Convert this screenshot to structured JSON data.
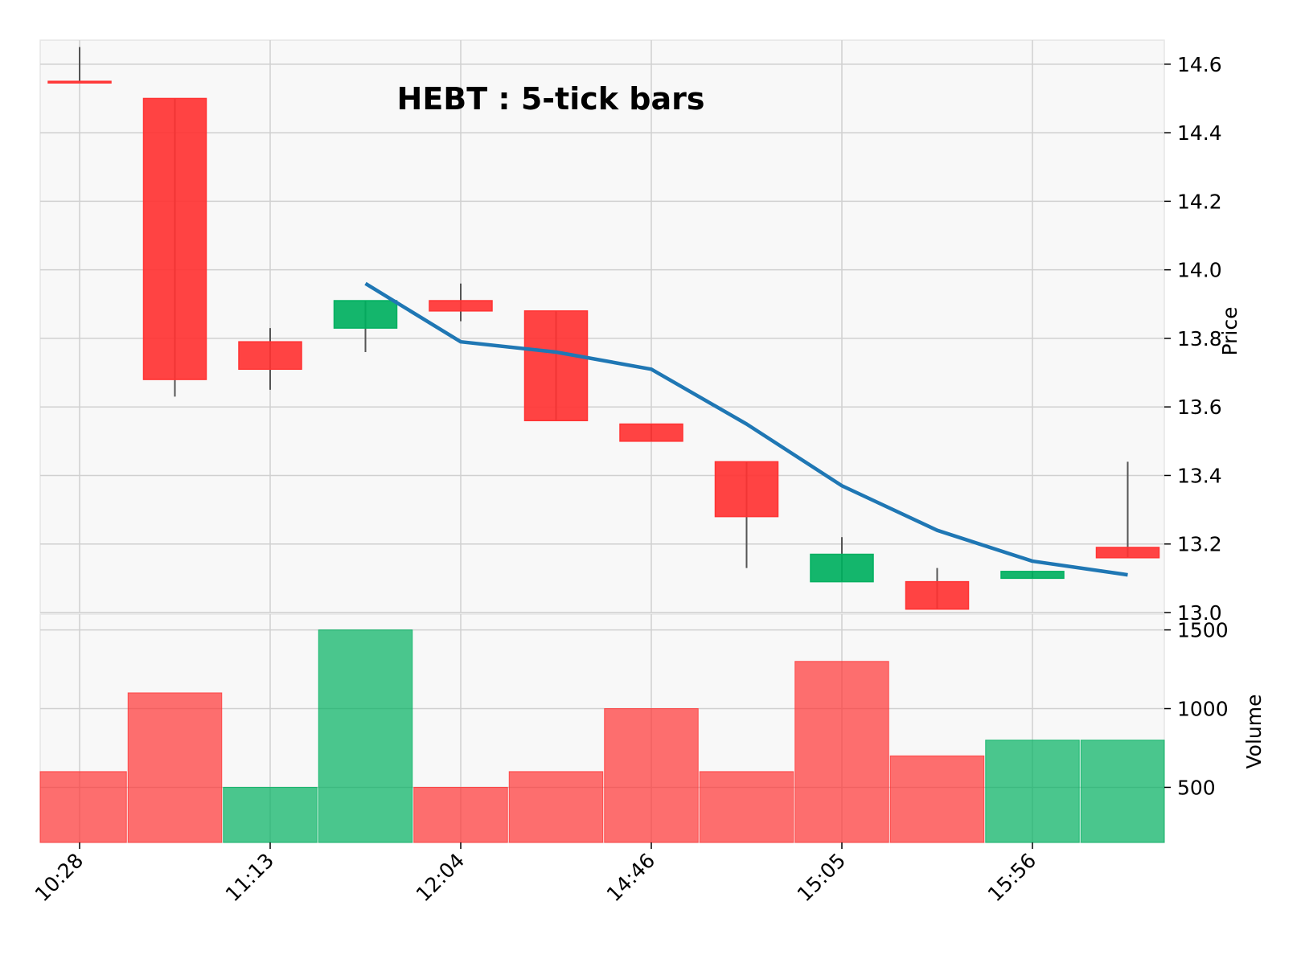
{
  "colors": {
    "up": "#00b060",
    "down": "#ff3333",
    "ma": "#1f77b4",
    "wick": "#555555",
    "grid": "#d0d0d0",
    "panel_bg": "#f8f8f8",
    "spine": "#e6e6e6"
  },
  "chart_data": [
    {
      "type": "candlestick",
      "title": "HEBT : 5-tick bars",
      "ylabel": "Price",
      "ylim": [
        13.0,
        14.67
      ],
      "y_ticks": [
        "13.0",
        "13.2",
        "13.4",
        "13.6",
        "13.8",
        "14.0",
        "14.2",
        "14.4",
        "14.6"
      ],
      "x_tick_labels": [
        {
          "index": 0,
          "label": "10:28"
        },
        {
          "index": 2,
          "label": "11:13"
        },
        {
          "index": 4,
          "label": "12:04"
        },
        {
          "index": 6,
          "label": "14:46"
        },
        {
          "index": 8,
          "label": "15:05"
        },
        {
          "index": 10,
          "label": "15:56"
        }
      ],
      "candles": [
        {
          "open": 14.55,
          "high": 14.65,
          "low": 14.55,
          "close": 14.55
        },
        {
          "open": 14.5,
          "high": 14.5,
          "low": 13.63,
          "close": 13.68
        },
        {
          "open": 13.79,
          "high": 13.83,
          "low": 13.65,
          "close": 13.71
        },
        {
          "open": 13.83,
          "high": 13.91,
          "low": 13.76,
          "close": 13.91
        },
        {
          "open": 13.91,
          "high": 13.96,
          "low": 13.85,
          "close": 13.88
        },
        {
          "open": 13.88,
          "high": 13.88,
          "low": 13.56,
          "close": 13.56
        },
        {
          "open": 13.55,
          "high": 13.55,
          "low": 13.5,
          "close": 13.5
        },
        {
          "open": 13.44,
          "high": 13.44,
          "low": 13.13,
          "close": 13.28
        },
        {
          "open": 13.09,
          "high": 13.22,
          "low": 13.09,
          "close": 13.17
        },
        {
          "open": 13.09,
          "high": 13.13,
          "low": 13.01,
          "close": 13.01
        },
        {
          "open": 13.1,
          "high": 13.12,
          "low": 13.1,
          "close": 13.12
        },
        {
          "open": 13.19,
          "high": 13.44,
          "low": 13.16,
          "close": 13.16
        }
      ],
      "moving_average": {
        "start_index": 3,
        "values": [
          13.96,
          13.79,
          13.76,
          13.71,
          13.55,
          13.37,
          13.24,
          13.15,
          13.11
        ]
      }
    },
    {
      "type": "bar",
      "ylabel": "Volume",
      "ylim": [
        150,
        1600
      ],
      "y_ticks": [
        "500",
        "1000",
        "1500"
      ],
      "values": [
        600,
        1100,
        500,
        1500,
        500,
        600,
        1000,
        600,
        1300,
        700,
        800,
        800
      ],
      "direction": [
        "down",
        "down",
        "up",
        "up",
        "down",
        "down",
        "down",
        "down",
        "down",
        "down",
        "up",
        "up"
      ]
    }
  ]
}
